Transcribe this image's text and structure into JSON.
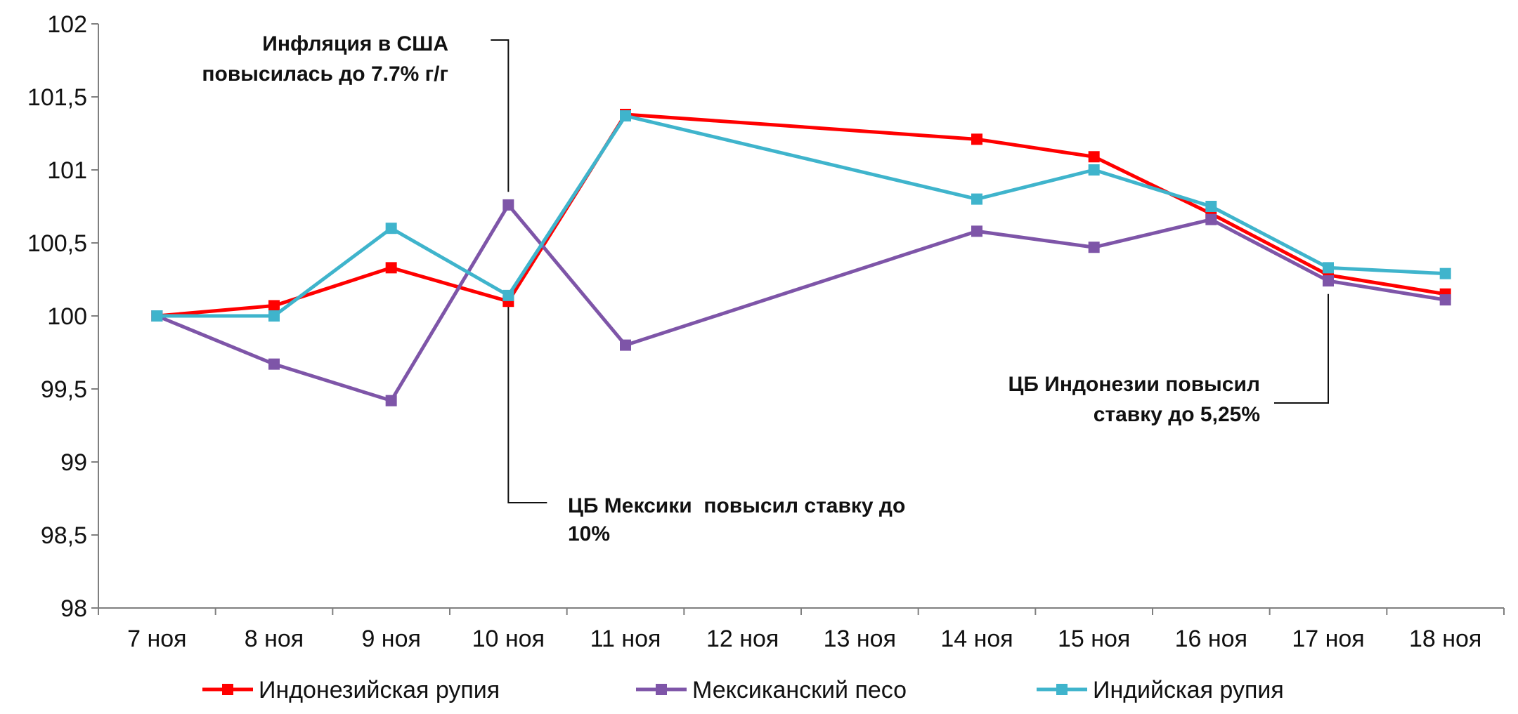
{
  "chart_data": {
    "type": "line",
    "categories": [
      "7 ноя",
      "8 ноя",
      "9 ноя",
      "10 ноя",
      "11 ноя",
      "12 ноя",
      "13 ноя",
      "14 ноя",
      "15 ноя",
      "16 ноя",
      "17 ноя",
      "18 ноя"
    ],
    "y_ticks": [
      "98",
      "98,5",
      "99",
      "99,5",
      "100",
      "100,5",
      "101",
      "101,5",
      "102"
    ],
    "ylim": [
      98,
      102
    ],
    "series": [
      {
        "name": "Индонезийская рупия",
        "color": "#ff0000",
        "points": [
          [
            0,
            100.0
          ],
          [
            1,
            100.07
          ],
          [
            2,
            100.33
          ],
          [
            3,
            100.1
          ],
          [
            4,
            101.38
          ],
          [
            7,
            101.21
          ],
          [
            8,
            101.09
          ],
          [
            9,
            100.7
          ],
          [
            10,
            100.28
          ],
          [
            11,
            100.15
          ]
        ]
      },
      {
        "name": "Мексиканский песо",
        "color": "#7e55a8",
        "points": [
          [
            0,
            100.0
          ],
          [
            1,
            99.67
          ],
          [
            2,
            99.42
          ],
          [
            3,
            100.76
          ],
          [
            4,
            99.8
          ],
          [
            7,
            100.58
          ],
          [
            8,
            100.47
          ],
          [
            9,
            100.66
          ],
          [
            10,
            100.24
          ],
          [
            11,
            100.11
          ]
        ]
      },
      {
        "name": "Индийская рупия",
        "color": "#3fb4cc",
        "points": [
          [
            0,
            100.0
          ],
          [
            1,
            100.0
          ],
          [
            2,
            100.6
          ],
          [
            3,
            100.14
          ],
          [
            4,
            101.37
          ],
          [
            7,
            100.8
          ],
          [
            8,
            101.0
          ],
          [
            9,
            100.75
          ],
          [
            10,
            100.33
          ],
          [
            11,
            100.29
          ]
        ]
      }
    ],
    "annotations": [
      {
        "id": "us-inflation",
        "lines": [
          "Инфляция в США",
          "повысилась до 7.7% г/г"
        ]
      },
      {
        "id": "mexico-cb",
        "lines": [
          "ЦБ Мексики  повысил ставку до",
          "10%"
        ]
      },
      {
        "id": "indonesia-cb",
        "lines": [
          "ЦБ Индонезии повысил",
          "ставку до 5,25%"
        ]
      }
    ],
    "legend_position": "bottom"
  }
}
